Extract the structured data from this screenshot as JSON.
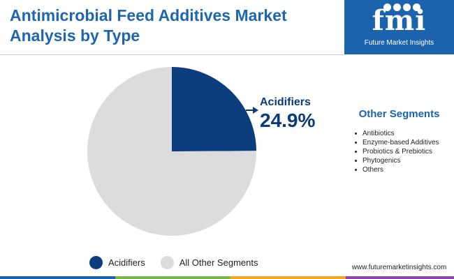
{
  "title": "Antimicrobial Feed Additives Market Analysis by Type",
  "chart_data": {
    "type": "pie",
    "slices": [
      {
        "label": "Acidifiers",
        "value": 24.9,
        "color": "#0c3d7c"
      },
      {
        "label": "All Other Segments",
        "value": 75.1,
        "color": "#dcdcdc"
      }
    ],
    "callout": {
      "label": "Acidifiers",
      "value": "24.9%"
    },
    "legend": [
      "Acidifiers",
      "All Other Segments"
    ],
    "legend_position": "bottom"
  },
  "sidebar": {
    "brand_logo": "fmi",
    "brand_name": "Future Market Insights",
    "segments_title": "Other Segments",
    "segments": [
      "Antibiotics",
      "Enzyme-based Additives",
      "Probiotics & Prebiotics",
      "Phytogenics",
      "Others"
    ],
    "website": "www.futuremarketinsights.com"
  },
  "colors": {
    "title": "#1e66b0",
    "brand_bg": "#1b64ad",
    "acidifiers": "#0c3d7c",
    "others": "#dcdcdc",
    "footer_stripes": [
      "#1b64ad",
      "#7ab648",
      "#f5a623",
      "#8e44ad",
      "#1b64ad"
    ]
  }
}
